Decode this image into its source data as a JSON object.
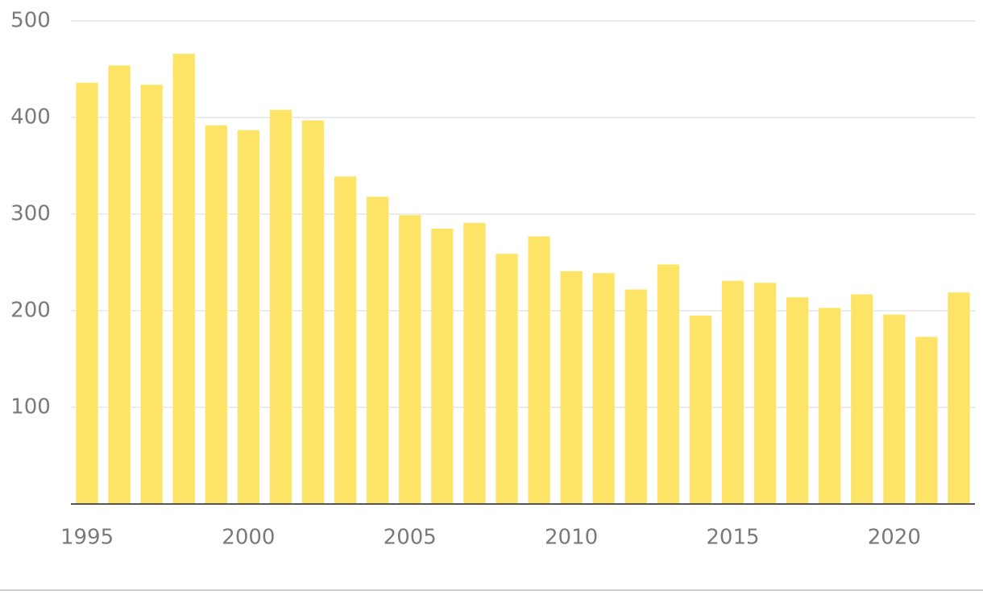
{
  "chart_data": {
    "type": "bar",
    "x": [
      1995,
      1996,
      1997,
      1998,
      1999,
      2000,
      2001,
      2002,
      2003,
      2004,
      2005,
      2006,
      2007,
      2008,
      2009,
      2010,
      2011,
      2012,
      2013,
      2014,
      2015,
      2016,
      2017,
      2018,
      2019,
      2020,
      2021,
      2022
    ],
    "values": [
      436,
      454,
      434,
      466,
      392,
      387,
      408,
      397,
      339,
      318,
      299,
      285,
      291,
      259,
      277,
      241,
      239,
      222,
      248,
      195,
      231,
      229,
      214,
      203,
      217,
      196,
      173,
      219
    ],
    "color": "#fde466",
    "xlim": [
      1994.5,
      2022.5
    ],
    "xticks": [
      1995,
      2000,
      2005,
      2010,
      2015,
      2020
    ],
    "ylim": [
      0,
      500
    ],
    "yticks": [
      100,
      200,
      300,
      400,
      500
    ],
    "grid": true
  }
}
